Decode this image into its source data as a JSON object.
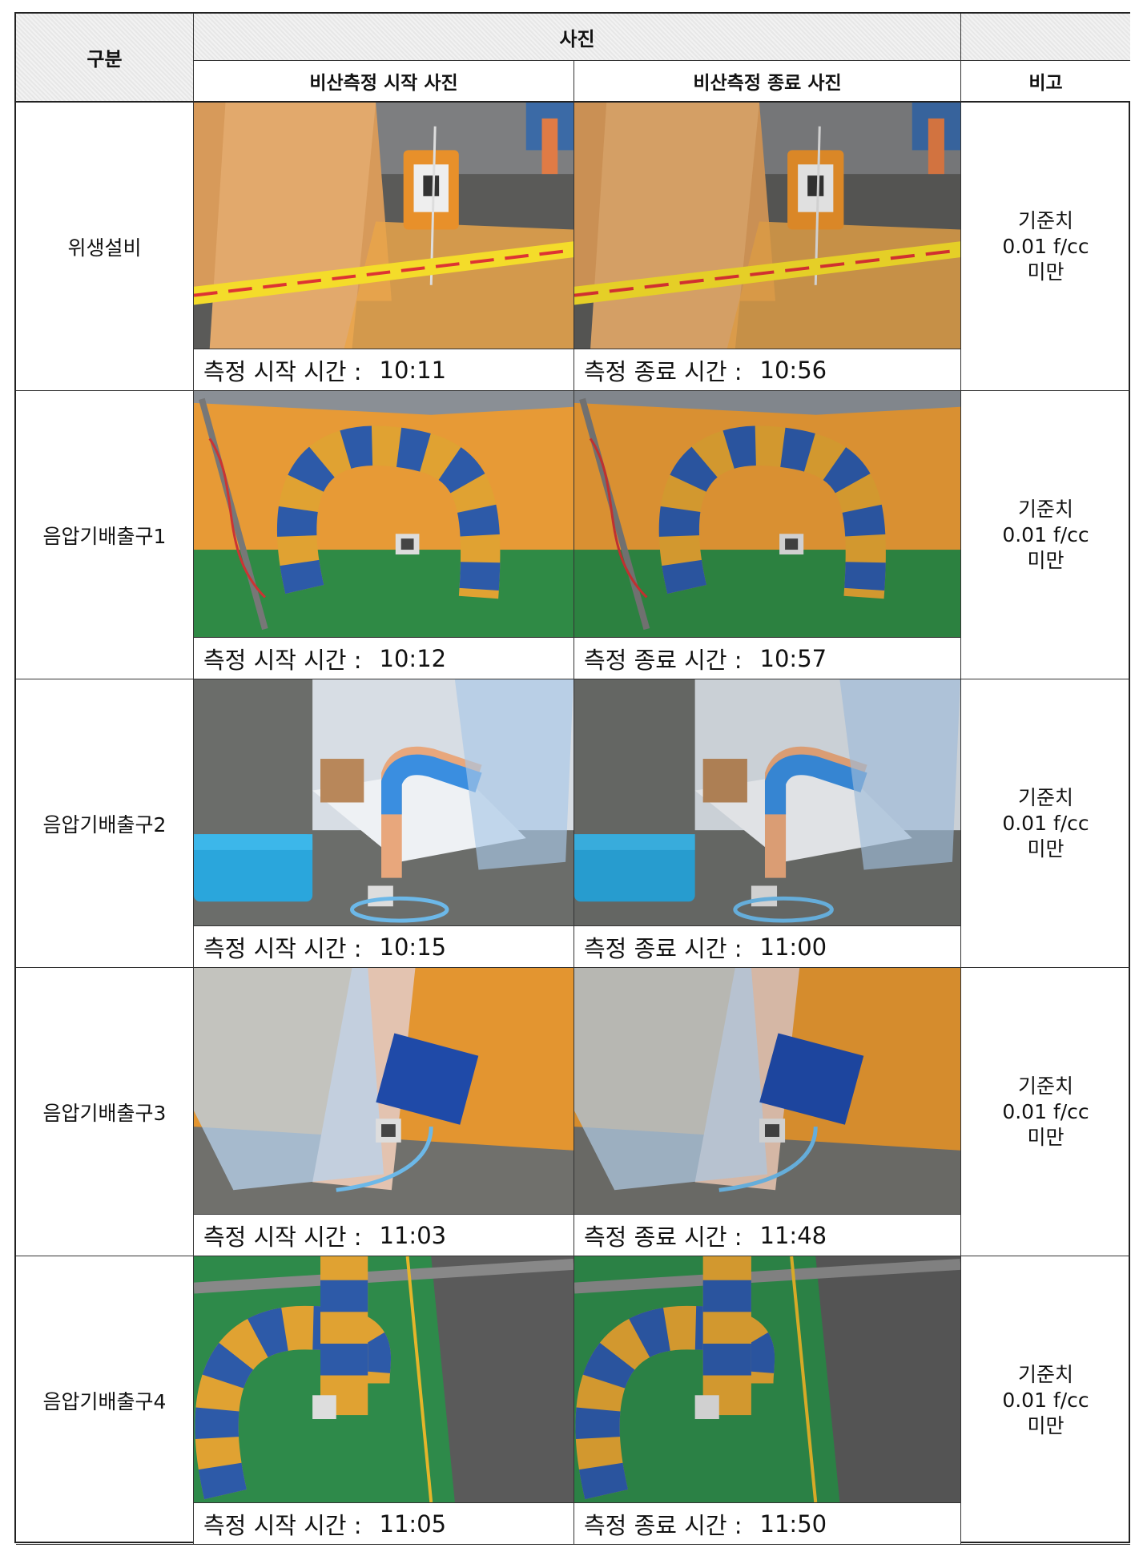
{
  "header": {
    "category": "구분",
    "photos": "사진",
    "start_photo": "비산측정 시작 사진",
    "end_photo": "비산측정 종료 사진",
    "note": "비고"
  },
  "rows": [
    {
      "category": "위생설비",
      "start_label": "측정 시작 시간 :",
      "start_time": "10:11",
      "end_label": "측정 종료 시간 :",
      "end_time": "10:56",
      "note": [
        "기준치",
        "0.01 f/cc",
        "미만"
      ]
    },
    {
      "category": "음압기배출구1",
      "start_label": "측정 시작 시간 :",
      "start_time": "10:12",
      "end_label": "측정 종료 시간 :",
      "end_time": "10:57",
      "note": [
        "기준치",
        "0.01 f/cc",
        "미만"
      ]
    },
    {
      "category": "음압기배출구2",
      "start_label": "측정 시작 시간 :",
      "start_time": "10:15",
      "end_label": "측정 종료 시간 :",
      "end_time": "11:00",
      "note": [
        "기준치",
        "0.01 f/cc",
        "미만"
      ]
    },
    {
      "category": "음압기배출구3",
      "start_label": "측정 시작 시간 :",
      "start_time": "11:03",
      "end_label": "측정 종료 시간 :",
      "end_time": "11:48",
      "note": [
        "기준치",
        "0.01 f/cc",
        "미만"
      ]
    },
    {
      "category": "음압기배출구4",
      "start_label": "측정 시작 시간 :",
      "start_time": "11:05",
      "end_label": "측정 종료 시간 :",
      "end_time": "11:50",
      "note": [
        "기준치",
        "0.01 f/cc",
        "미만"
      ]
    }
  ]
}
